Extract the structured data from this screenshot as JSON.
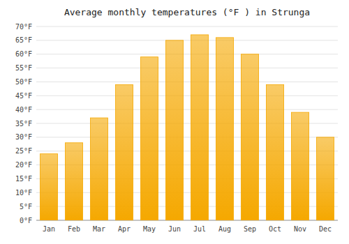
{
  "chart_data": {
    "type": "bar",
    "title": "Average monthly temperatures (°F ) in Strunga",
    "categories": [
      "Jan",
      "Feb",
      "Mar",
      "Apr",
      "May",
      "Jun",
      "Jul",
      "Aug",
      "Sep",
      "Oct",
      "Nov",
      "Dec"
    ],
    "values": [
      24,
      28,
      37,
      49,
      59,
      65,
      67,
      66,
      60,
      49,
      39,
      30
    ],
    "color": "#F5A800",
    "ylim": [
      0,
      70
    ],
    "yticks": [
      {
        "value": 0,
        "label": "0°F"
      },
      {
        "value": 5,
        "label": "5°F"
      },
      {
        "value": 10,
        "label": "10°F"
      },
      {
        "value": 15,
        "label": "15°F"
      },
      {
        "value": 20,
        "label": "20°F"
      },
      {
        "value": 25,
        "label": "25°F"
      },
      {
        "value": 30,
        "label": "30°F"
      },
      {
        "value": 35,
        "label": "35°F"
      },
      {
        "value": 40,
        "label": "40°F"
      },
      {
        "value": 45,
        "label": "45°F"
      },
      {
        "value": 50,
        "label": "50°F"
      },
      {
        "value": 55,
        "label": "55°F"
      },
      {
        "value": 60,
        "label": "60°F"
      },
      {
        "value": 65,
        "label": "65°F"
      },
      {
        "value": 70,
        "label": "70°F"
      }
    ],
    "grid": true
  }
}
